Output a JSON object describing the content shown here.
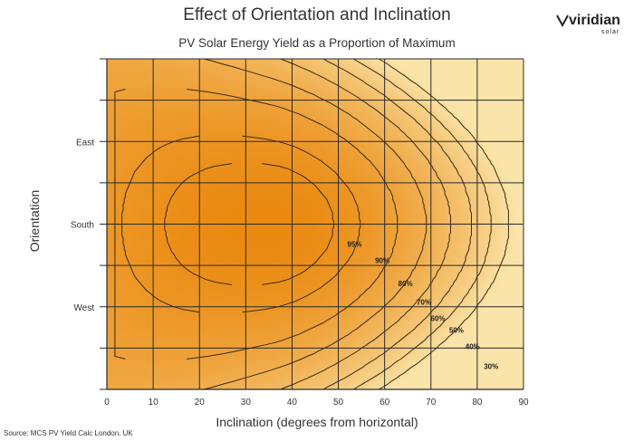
{
  "chart_data": {
    "type": "heatmap",
    "title": "Effect of Orientation and Inclination",
    "subtitle": "PV Solar Energy Yield as a Proportion of Maximum",
    "xlabel": "Inclination (degrees from horizontal)",
    "ylabel": "Orientation",
    "xlim": [
      0,
      90
    ],
    "x_ticks": [
      0,
      10,
      20,
      30,
      40,
      50,
      60,
      70,
      80,
      90
    ],
    "y_tick_labels": [
      "East",
      "South",
      "West"
    ],
    "grid": true,
    "contour_levels": [
      "95%",
      "90%",
      "80%",
      "70%",
      "60%",
      "50%",
      "40%",
      "30%"
    ],
    "colors": {
      "max": "#ea8a10",
      "min": "#fbe4a9"
    }
  },
  "source": "Source: MCS PV Yield Calc London, UK",
  "logo": {
    "word": "viridian",
    "sub": "solar"
  }
}
